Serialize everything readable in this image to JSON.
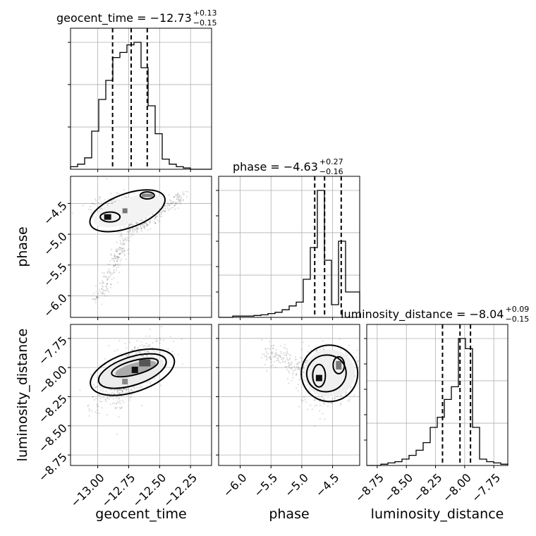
{
  "chart_data": {
    "type": "corner",
    "parameters": [
      "geocent_time",
      "phase",
      "luminosity_distance"
    ],
    "axis_labels": {
      "geocent_time": "geocent_time",
      "phase": "phase",
      "luminosity_distance": "luminosity_distance"
    },
    "ranges": {
      "geocent_time": [
        -13.22,
        -12.08
      ],
      "phase": [
        -6.35,
        -4.06
      ],
      "luminosity_distance": [
        -8.84,
        -7.63
      ]
    },
    "ticks": {
      "geocent_time": {
        "values": [
          -13.0,
          -12.75,
          -12.5,
          -12.25
        ],
        "labels": [
          "−13.00",
          "−12.75",
          "−12.50",
          "−12.25"
        ]
      },
      "phase": {
        "values": [
          -6.0,
          -5.5,
          -5.0,
          -4.5
        ],
        "labels": [
          "−6.0",
          "−5.5",
          "−5.0",
          "−4.5"
        ]
      },
      "luminosity_distance": {
        "values": [
          -8.75,
          -8.5,
          -8.25,
          -8.0,
          -7.75
        ],
        "labels": [
          "−8.75",
          "−8.50",
          "−8.25",
          "−8.00",
          "−7.75"
        ]
      }
    },
    "titles": {
      "geocent_time": {
        "main": "geocent_time = −12.73",
        "sup": "+0.13",
        "sub": "−0.15"
      },
      "phase": {
        "main": "phase = −4.63",
        "sup": "+0.27",
        "sub": "−0.16"
      },
      "luminosity_distance": {
        "main": "luminosity_distance = −8.04",
        "sup": "+0.09",
        "sub": "−0.15"
      }
    },
    "quantiles": {
      "geocent_time": [
        -12.88,
        -12.73,
        -12.6
      ],
      "phase": [
        -4.79,
        -4.63,
        -4.36
      ],
      "luminosity_distance": [
        -8.19,
        -8.04,
        -7.95
      ]
    },
    "histograms": {
      "geocent_time": {
        "edges": [
          -13.22,
          -13.163,
          -13.106,
          -13.049,
          -12.992,
          -12.935,
          -12.878,
          -12.821,
          -12.764,
          -12.707,
          -12.65,
          -12.593,
          -12.536,
          -12.479,
          -12.422,
          -12.365,
          -12.308,
          -12.251,
          -12.194,
          -12.137,
          -12.08
        ],
        "counts": [
          0.02,
          0.04,
          0.09,
          0.3,
          0.55,
          0.7,
          0.88,
          0.92,
          0.98,
          1.0,
          0.8,
          0.5,
          0.28,
          0.08,
          0.04,
          0.02,
          0.01,
          0,
          0,
          0
        ]
      },
      "phase": {
        "edges": [
          -6.35,
          -6.236,
          -6.121,
          -6.007,
          -5.892,
          -5.778,
          -5.663,
          -5.549,
          -5.434,
          -5.32,
          -5.205,
          -5.091,
          -4.976,
          -4.862,
          -4.747,
          -4.632,
          -4.518,
          -4.404,
          -4.289,
          -4.175,
          -4.06
        ],
        "counts": [
          0,
          0,
          0.01,
          0.01,
          0.01,
          0.015,
          0.02,
          0.03,
          0.04,
          0.06,
          0.09,
          0.12,
          0.3,
          0.55,
          1.0,
          0.45,
          0.1,
          0.6,
          0.2,
          0.2
        ]
      },
      "luminosity_distance": {
        "edges": [
          -8.84,
          -8.7795,
          -8.719,
          -8.6585,
          -8.598,
          -8.5375,
          -8.477,
          -8.4165,
          -8.356,
          -8.2955,
          -8.235,
          -8.1745,
          -8.114,
          -8.0535,
          -7.993,
          -7.9325,
          -7.872,
          -7.8115,
          -7.751,
          -7.6905,
          -7.63
        ],
        "counts": [
          0,
          0,
          0.01,
          0.02,
          0.03,
          0.05,
          0.08,
          0.12,
          0.18,
          0.3,
          0.38,
          0.52,
          0.62,
          1.0,
          0.92,
          0.3,
          0.05,
          0.03,
          0.02,
          0.01
        ]
      }
    },
    "peaks": {
      "geocent_time_phase": [
        [
          -12.92,
          -4.72
        ],
        [
          -12.78,
          -4.62
        ],
        [
          -12.6,
          -4.37
        ]
      ],
      "geocent_time_luminosity_distance": [
        [
          -12.7,
          -8.02
        ],
        [
          -12.62,
          -7.96
        ],
        [
          -12.78,
          -8.12
        ]
      ],
      "phase_luminosity_distance": [
        [
          -4.72,
          -8.09
        ],
        [
          -4.4,
          -7.98
        ]
      ]
    },
    "grid": true,
    "legend": "none"
  }
}
